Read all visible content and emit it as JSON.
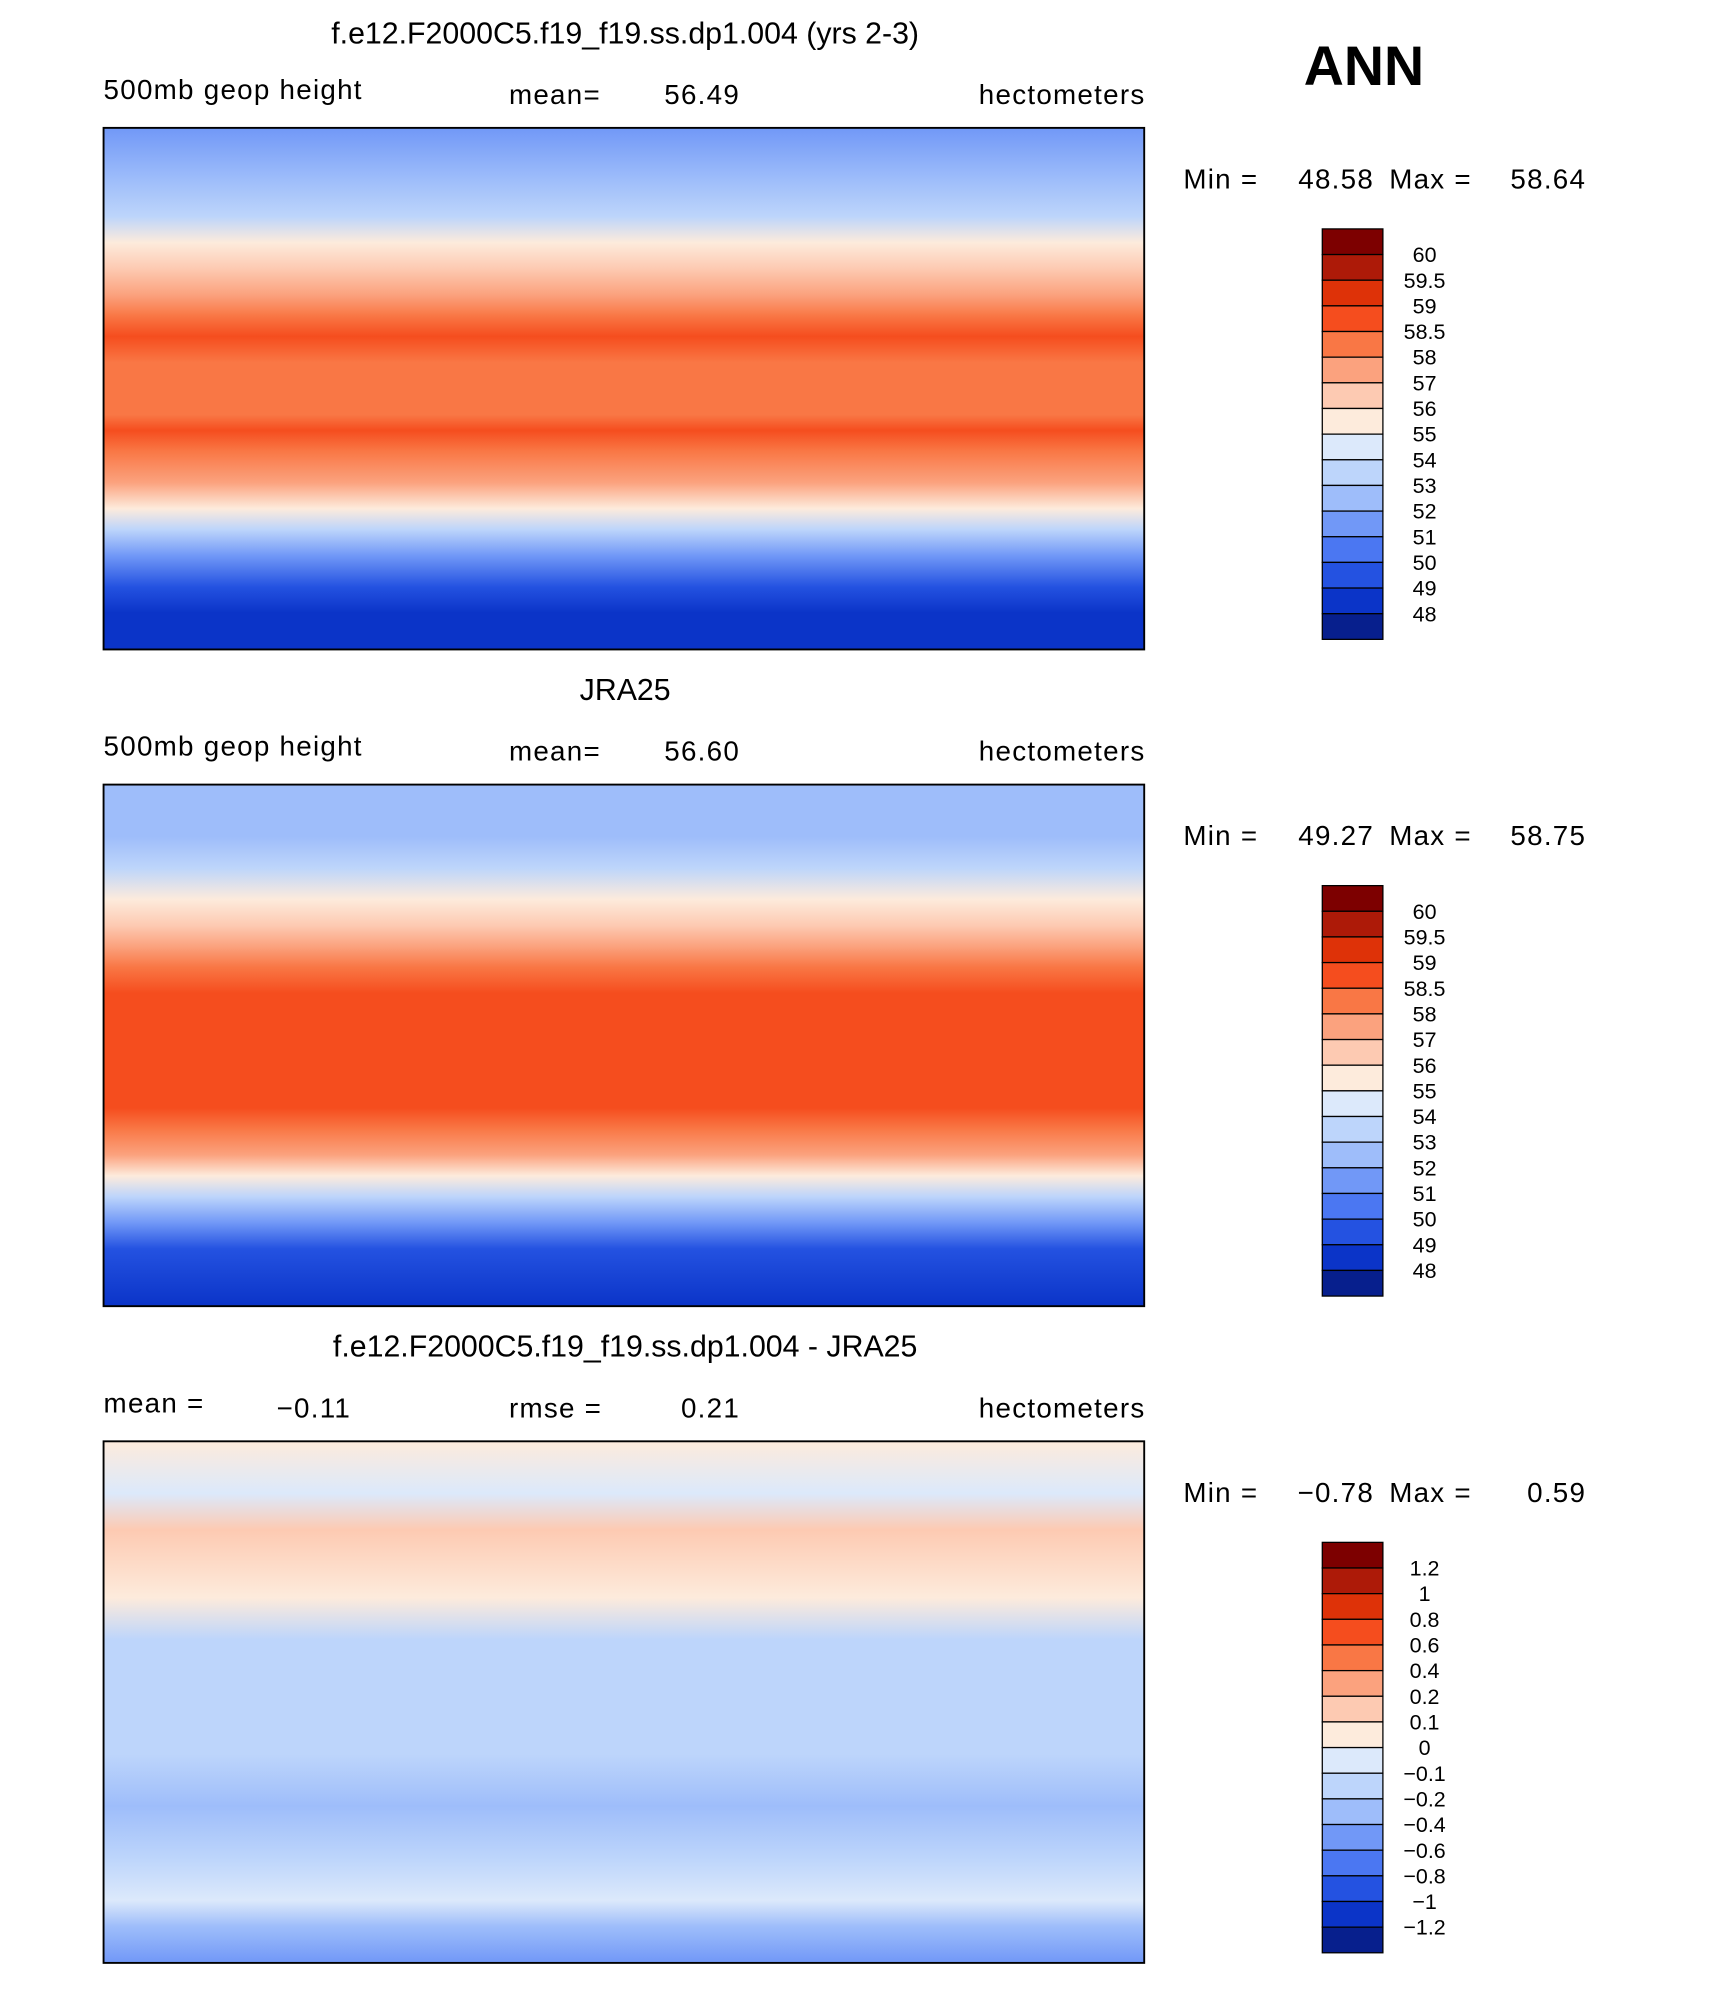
{
  "header": {
    "season": "ANN"
  },
  "panels": [
    {
      "title": "f.e12.F2000C5.f19_f19.ss.dp1.004 (yrs 2-3)",
      "left_label": "500mb geop height",
      "stat1_label": "mean=",
      "stat1_value": "56.49",
      "right_label": "hectometers",
      "min_label": "Min =",
      "min": "48.58",
      "max_label": "Max =",
      "max": "58.64",
      "colorbar": {
        "labels": [
          "60",
          "59.5",
          "59",
          "58.5",
          "58",
          "57",
          "56",
          "55",
          "54",
          "53",
          "52",
          "51",
          "50",
          "49",
          "48"
        ],
        "colors": [
          "#7d0000",
          "#ad1a08",
          "#de3208",
          "#f54d1e",
          "#f97745",
          "#fba27e",
          "#fdcab2",
          "#fdebdc",
          "#dce9fb",
          "#bdd5fb",
          "#9ebdfa",
          "#7198f7",
          "#4b77f2",
          "#2452e1",
          "#0b34c8",
          "#071f8d"
        ]
      }
    },
    {
      "title": "JRA25",
      "left_label": "500mb geop height",
      "stat1_label": "mean=",
      "stat1_value": "56.60",
      "right_label": "hectometers",
      "min_label": "Min =",
      "min": "49.27",
      "max_label": "Max =",
      "max": "58.75",
      "colorbar": {
        "labels": [
          "60",
          "59.5",
          "59",
          "58.5",
          "58",
          "57",
          "56",
          "55",
          "54",
          "53",
          "52",
          "51",
          "50",
          "49",
          "48"
        ],
        "colors": [
          "#7d0000",
          "#ad1a08",
          "#de3208",
          "#f54d1e",
          "#f97745",
          "#fba27e",
          "#fdcab2",
          "#fdebdc",
          "#dce9fb",
          "#bdd5fb",
          "#9ebdfa",
          "#7198f7",
          "#4b77f2",
          "#2452e1",
          "#0b34c8",
          "#071f8d"
        ]
      }
    },
    {
      "title": "f.e12.F2000C5.f19_f19.ss.dp1.004 - JRA25",
      "left_label": "mean =",
      "left_value": "−0.11",
      "stat1_label": "rmse =",
      "stat1_value": "0.21",
      "right_label": "hectometers",
      "min_label": "Min =",
      "min": "−0.78",
      "max_label": "Max =",
      "max": "0.59",
      "colorbar": {
        "labels": [
          "1.2",
          "1",
          "0.8",
          "0.6",
          "0.4",
          "0.2",
          "0.1",
          "0",
          "−0.1",
          "−0.2",
          "−0.4",
          "−0.6",
          "−0.8",
          "−1",
          "−1.2"
        ],
        "colors": [
          "#7d0000",
          "#ad1a08",
          "#de3208",
          "#f54d1e",
          "#f97745",
          "#fba27e",
          "#fdcab2",
          "#fdebdc",
          "#dce9fb",
          "#bdd5fb",
          "#9ebdfa",
          "#7198f7",
          "#4b77f2",
          "#2452e1",
          "#0b34c8",
          "#071f8d"
        ]
      }
    }
  ]
}
